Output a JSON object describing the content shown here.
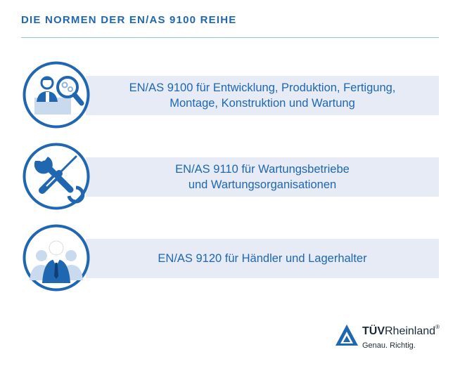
{
  "header": {
    "title": "DIE NORMEN DER EN/AS 9100 REIHE"
  },
  "norms": [
    {
      "icon": "inspector-magnifier-icon",
      "line1": "EN/AS 9100 für Entwicklung, Produktion, Fertigung,",
      "line2": "Montage, Konstruktion und Wartung"
    },
    {
      "icon": "wrench-screwdriver-icon",
      "line1": "EN/AS 9110 für Wartungsbetriebe",
      "line2": "und Wartungsorganisationen"
    },
    {
      "icon": "business-people-icon",
      "line1": "EN/AS 9120 für Händler und Lagerhalter",
      "line2": ""
    }
  ],
  "logo": {
    "name_bold": "TÜV",
    "name_light": "Rheinland",
    "registered": "®",
    "slogan": "Genau. Richtig."
  },
  "colors": {
    "primary_blue": "#1f67b1",
    "band_background": "#e6ebf5",
    "logo_text": "#1b2a3a"
  }
}
